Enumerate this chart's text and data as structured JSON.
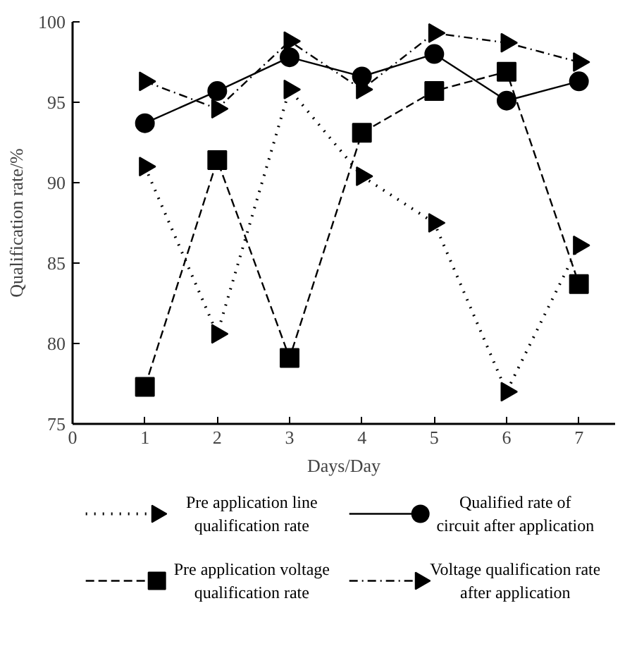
{
  "chart_data": {
    "type": "line",
    "xlabel": "Days/Day",
    "ylabel": "Qualification rate/%",
    "x": [
      1,
      2,
      3,
      4,
      5,
      6,
      7
    ],
    "xlim": [
      0,
      7.5
    ],
    "xticks": [
      0,
      1,
      2,
      3,
      4,
      5,
      6,
      7
    ],
    "ylim": [
      75,
      100
    ],
    "yticks": [
      75,
      80,
      85,
      90,
      95,
      100
    ],
    "grid": false,
    "legend": "bottom",
    "series": [
      {
        "name": "Pre application line qualification rate",
        "color": "#000000",
        "marker": "triangle",
        "line_style": "dotted",
        "values": [
          91.0,
          80.6,
          95.8,
          90.4,
          87.5,
          77.0,
          86.1
        ]
      },
      {
        "name": "Qualified rate of circuit after application",
        "color": "#000000",
        "marker": "circle",
        "line_style": "solid",
        "values": [
          93.7,
          95.7,
          97.8,
          96.6,
          98.0,
          95.1,
          96.3
        ]
      },
      {
        "name": "Pre application voltage qualification rate",
        "color": "#000000",
        "marker": "square",
        "line_style": "dashed",
        "values": [
          77.3,
          91.4,
          79.1,
          93.1,
          95.7,
          96.9,
          83.7
        ]
      },
      {
        "name": "Voltage qualification rate after application",
        "color": "#000000",
        "marker": "triangle",
        "line_style": "dashdot",
        "values": [
          96.3,
          94.6,
          98.8,
          95.8,
          99.3,
          98.7,
          97.5
        ]
      }
    ]
  }
}
